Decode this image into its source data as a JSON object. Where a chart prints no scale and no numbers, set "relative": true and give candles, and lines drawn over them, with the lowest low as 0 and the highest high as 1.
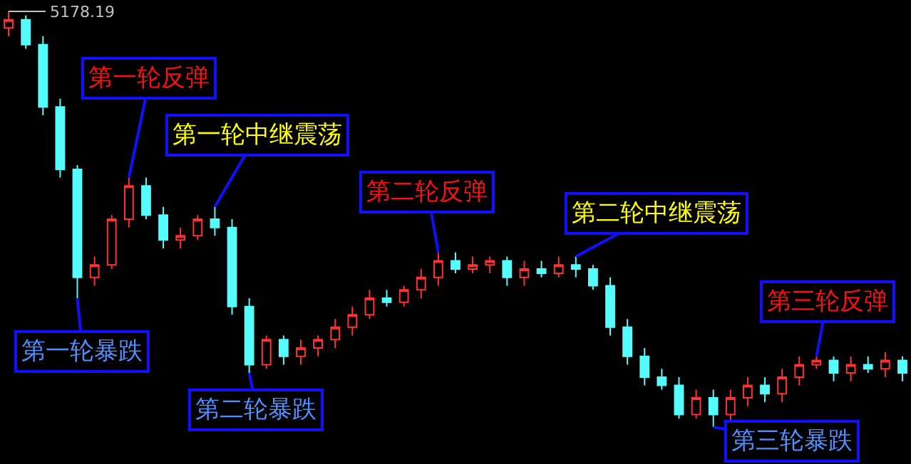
{
  "chart_data": {
    "type": "candlestick",
    "relative": true,
    "categories": [
      null,
      null,
      null,
      null,
      null,
      null,
      null,
      null,
      null,
      null,
      null,
      null,
      null,
      null,
      null,
      null,
      null,
      null,
      null,
      null,
      null,
      null,
      null,
      null,
      null,
      null,
      null,
      null,
      null,
      null,
      null,
      null,
      null,
      null,
      null,
      null,
      null,
      null,
      null,
      null,
      null,
      null,
      null,
      null,
      null,
      null,
      null,
      null,
      null,
      null,
      null,
      null,
      null
    ],
    "ohlc": [
      [
        0.96,
        1,
        0.94,
        0.98
      ],
      [
        0.98,
        0.99,
        0.91,
        0.92
      ],
      [
        0.92,
        0.94,
        0.75,
        0.77
      ],
      [
        0.77,
        0.79,
        0.6,
        0.62
      ],
      [
        0.62,
        0.63,
        0.31,
        0.36
      ],
      [
        0.36,
        0.41,
        0.34,
        0.39
      ],
      [
        0.39,
        0.51,
        0.38,
        0.5
      ],
      [
        0.5,
        0.6,
        0.48,
        0.58
      ],
      [
        0.58,
        0.6,
        0.5,
        0.51
      ],
      [
        0.51,
        0.53,
        0.43,
        0.45
      ],
      [
        0.45,
        0.48,
        0.43,
        0.46
      ],
      [
        0.46,
        0.51,
        0.45,
        0.5
      ],
      [
        0.5,
        0.53,
        0.46,
        0.48
      ],
      [
        0.48,
        0.5,
        0.27,
        0.29
      ],
      [
        0.29,
        0.31,
        0.13,
        0.15
      ],
      [
        0.15,
        0.22,
        0.14,
        0.21
      ],
      [
        0.21,
        0.22,
        0.15,
        0.17
      ],
      [
        0.17,
        0.21,
        0.15,
        0.19
      ],
      [
        0.19,
        0.22,
        0.17,
        0.21
      ],
      [
        0.21,
        0.26,
        0.19,
        0.24
      ],
      [
        0.24,
        0.29,
        0.22,
        0.27
      ],
      [
        0.27,
        0.33,
        0.26,
        0.31
      ],
      [
        0.31,
        0.33,
        0.29,
        0.3
      ],
      [
        0.3,
        0.34,
        0.29,
        0.33
      ],
      [
        0.33,
        0.38,
        0.31,
        0.36
      ],
      [
        0.36,
        0.42,
        0.34,
        0.4
      ],
      [
        0.4,
        0.42,
        0.37,
        0.38
      ],
      [
        0.38,
        0.41,
        0.37,
        0.39
      ],
      [
        0.39,
        0.41,
        0.37,
        0.4
      ],
      [
        0.4,
        0.41,
        0.34,
        0.36
      ],
      [
        0.36,
        0.4,
        0.34,
        0.38
      ],
      [
        0.38,
        0.4,
        0.36,
        0.37
      ],
      [
        0.37,
        0.41,
        0.36,
        0.39
      ],
      [
        0.39,
        0.41,
        0.36,
        0.38
      ],
      [
        0.38,
        0.39,
        0.33,
        0.34
      ],
      [
        0.34,
        0.36,
        0.22,
        0.24
      ],
      [
        0.24,
        0.26,
        0.15,
        0.17
      ],
      [
        0.17,
        0.19,
        0.1,
        0.12
      ],
      [
        0.12,
        0.14,
        0.09,
        0.1
      ],
      [
        0.1,
        0.12,
        0.02,
        0.03
      ],
      [
        0.03,
        0.09,
        0.02,
        0.07
      ],
      [
        0.07,
        0.09,
        0,
        0.03
      ],
      [
        0.03,
        0.09,
        0.01,
        0.07
      ],
      [
        0.07,
        0.12,
        0.05,
        0.1
      ],
      [
        0.1,
        0.12,
        0.06,
        0.08
      ],
      [
        0.08,
        0.14,
        0.06,
        0.12
      ],
      [
        0.12,
        0.17,
        0.1,
        0.15
      ],
      [
        0.15,
        0.17,
        0.14,
        0.16
      ],
      [
        0.16,
        0.17,
        0.11,
        0.13
      ],
      [
        0.13,
        0.17,
        0.11,
        0.15
      ],
      [
        0.15,
        0.17,
        0.13,
        0.14
      ],
      [
        0.14,
        0.18,
        0.12,
        0.16
      ],
      [
        0.16,
        0.17,
        0.11,
        0.13
      ]
    ],
    "colors": [
      "#ff3232",
      "#54fcfc",
      "#54fcfc",
      "#54fcfc",
      "#54fcfc",
      "#ff3232",
      "#ff3232",
      "#ff3232",
      "#54fcfc",
      "#54fcfc",
      "#ff3232",
      "#ff3232",
      "#54fcfc",
      "#54fcfc",
      "#54fcfc",
      "#ff3232",
      "#54fcfc",
      "#ff3232",
      "#ff3232",
      "#ff3232",
      "#ff3232",
      "#ff3232",
      "#54fcfc",
      "#ff3232",
      "#ff3232",
      "#ff3232",
      "#54fcfc",
      "#ff3232",
      "#ff3232",
      "#54fcfc",
      "#ff3232",
      "#54fcfc",
      "#ff3232",
      "#54fcfc",
      "#54fcfc",
      "#54fcfc",
      "#54fcfc",
      "#54fcfc",
      "#54fcfc",
      "#54fcfc",
      "#ff3232",
      "#54fcfc",
      "#ff3232",
      "#ff3232",
      "#54fcfc",
      "#ff3232",
      "#ff3232",
      "#ff3232",
      "#54fcfc",
      "#ff3232",
      "#54fcfc",
      "#ff3232",
      "#54fcfc"
    ],
    "annotations": [
      "5178.19",
      "第一轮暴跌",
      "第一轮反弹",
      "第一轮中继震荡",
      "第二轮暴跌",
      "第二轮反弹",
      "第二轮中继震荡",
      "第三轮暴跌",
      "第三轮反弹"
    ]
  }
}
